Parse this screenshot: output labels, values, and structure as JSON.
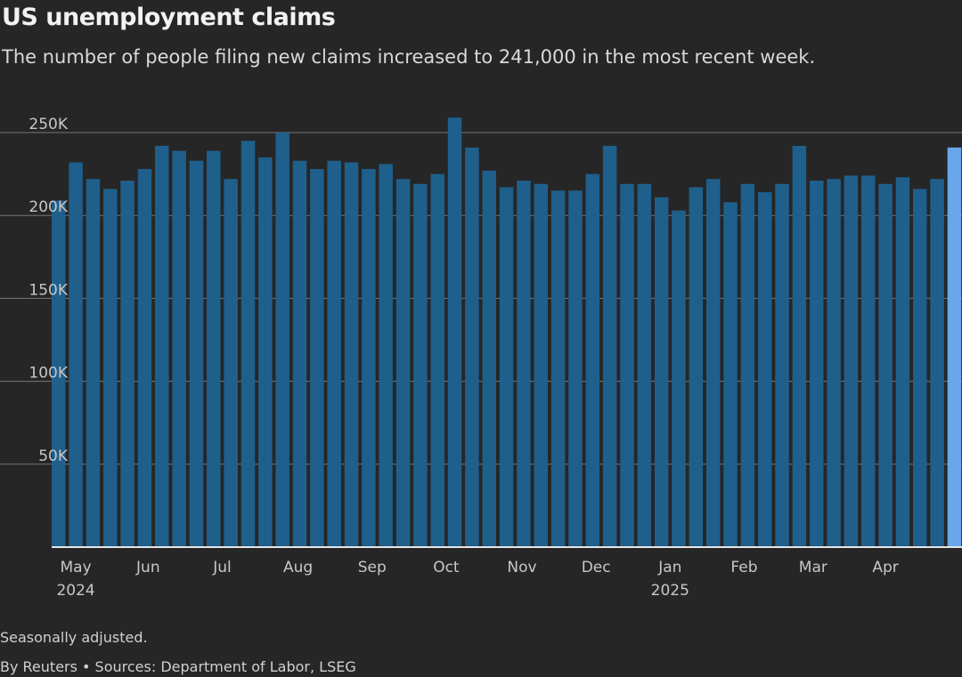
{
  "header": {
    "title": "US unemployment claims",
    "subtitle": "The number of people filing new claims increased to 241,000 in the most recent week."
  },
  "footer": {
    "note": "Seasonally adjusted.",
    "source": "By Reuters • Sources: Department of Labor, LSEG"
  },
  "colors": {
    "background": "#262626",
    "bar": "#1f5f8b",
    "highlight_bar": "#69a6ea",
    "gridline": "#777777",
    "baseline": "#e6e6e6",
    "text": "#c8c8c8"
  },
  "chart_data": {
    "type": "bar",
    "title": "US unemployment claims",
    "subtitle": "The number of people filing new claims increased to 241,000 in the most recent week.",
    "xlabel": "",
    "ylabel": "",
    "ylim": [
      0,
      250000
    ],
    "yticks": [
      {
        "value": 50000,
        "label": "50K"
      },
      {
        "value": 100000,
        "label": "100K"
      },
      {
        "value": 150000,
        "label": "150K"
      },
      {
        "value": 200000,
        "label": "200K"
      },
      {
        "value": 250000,
        "label": "250K"
      }
    ],
    "grid": true,
    "values": [
      209000,
      232000,
      222000,
      216000,
      221000,
      228000,
      242000,
      239000,
      233000,
      239000,
      222000,
      245000,
      235000,
      250000,
      233000,
      228000,
      233000,
      232000,
      228000,
      231000,
      222000,
      219000,
      225000,
      259000,
      241000,
      227000,
      217000,
      221000,
      219000,
      215000,
      215000,
      225000,
      242000,
      219000,
      219000,
      211000,
      203000,
      217000,
      222000,
      208000,
      219000,
      214000,
      219000,
      242000,
      221000,
      222000,
      224000,
      224000,
      219000,
      223000,
      216000,
      222000,
      241000
    ],
    "highlight_last": true,
    "x_labels": [
      {
        "index": 1,
        "month": "May",
        "year": "2024"
      },
      {
        "index": 5.2,
        "month": "Jun",
        "year": ""
      },
      {
        "index": 9.5,
        "month": "Jul",
        "year": ""
      },
      {
        "index": 13.9,
        "month": "Aug",
        "year": ""
      },
      {
        "index": 18.2,
        "month": "Sep",
        "year": ""
      },
      {
        "index": 22.5,
        "month": "Oct",
        "year": ""
      },
      {
        "index": 26.9,
        "month": "Nov",
        "year": ""
      },
      {
        "index": 31.2,
        "month": "Dec",
        "year": ""
      },
      {
        "index": 35.5,
        "month": "Jan",
        "year": "2025"
      },
      {
        "index": 39.8,
        "month": "Feb",
        "year": ""
      },
      {
        "index": 43.8,
        "month": "Mar",
        "year": ""
      },
      {
        "index": 48,
        "month": "Apr",
        "year": ""
      }
    ]
  }
}
